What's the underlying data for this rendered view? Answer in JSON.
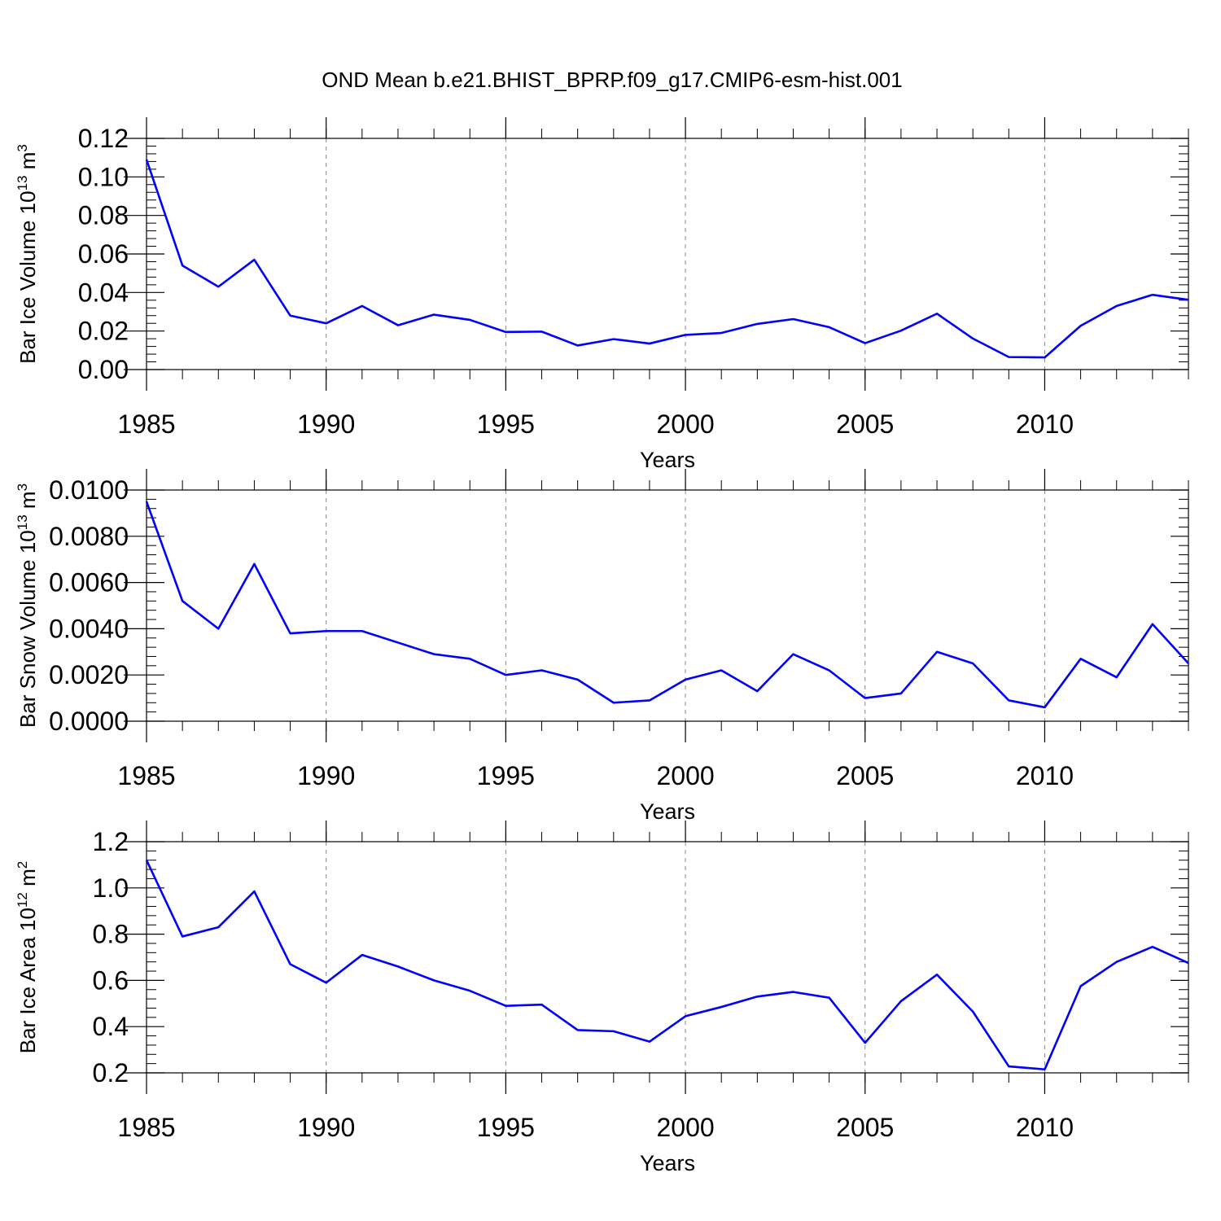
{
  "title": "OND Mean b.e21.BHIST_BPRP.f09_g17.CMIP6-esm-hist.001",
  "line_color": "#0000ff",
  "chart_data": [
    {
      "type": "line",
      "ylabel": "Bar Ice Volume 10",
      "ylabel_exp": "13",
      "ylabel_unit": " m",
      "ylabel_unit_exp": "3",
      "xlabel": "Years",
      "xlim": [
        1985,
        2014
      ],
      "ylim": [
        0,
        0.12
      ],
      "yticks": [
        "0.00",
        "0.02",
        "0.04",
        "0.06",
        "0.08",
        "0.10",
        "0.12"
      ],
      "ytick_values": [
        0,
        0.02,
        0.04,
        0.06,
        0.08,
        0.1,
        0.12
      ],
      "xticks": [
        "1985",
        "1990",
        "1995",
        "2000",
        "2005",
        "2010"
      ],
      "xtick_values": [
        1985,
        1990,
        1995,
        2000,
        2005,
        2010
      ],
      "x": [
        1985,
        1986,
        1987,
        1988,
        1989,
        1990,
        1991,
        1992,
        1993,
        1994,
        1995,
        1996,
        1997,
        1998,
        1999,
        2000,
        2001,
        2002,
        2003,
        2004,
        2005,
        2006,
        2007,
        2008,
        2009,
        2010,
        2011,
        2012,
        2013,
        2014
      ],
      "values": [
        0.109,
        0.054,
        0.043,
        0.057,
        0.028,
        0.024,
        0.033,
        0.023,
        0.0285,
        0.0258,
        0.0195,
        0.0197,
        0.0125,
        0.0158,
        0.0135,
        0.018,
        0.019,
        0.0237,
        0.0262,
        0.022,
        0.0137,
        0.0202,
        0.029,
        0.0161,
        0.0065,
        0.0063,
        0.0227,
        0.033,
        0.0388,
        0.0362
      ]
    },
    {
      "type": "line",
      "ylabel": "Bar Snow Volume 10",
      "ylabel_exp": "13",
      "ylabel_unit": " m",
      "ylabel_unit_exp": "3",
      "xlabel": "Years",
      "xlim": [
        1985,
        2014
      ],
      "ylim": [
        0,
        0.01
      ],
      "yticks": [
        "0.0000",
        "0.0020",
        "0.0040",
        "0.0060",
        "0.0080",
        "0.0100"
      ],
      "ytick_values": [
        0,
        0.002,
        0.004,
        0.006,
        0.008,
        0.01
      ],
      "xticks": [
        "1985",
        "1990",
        "1995",
        "2000",
        "2005",
        "2010"
      ],
      "xtick_values": [
        1985,
        1990,
        1995,
        2000,
        2005,
        2010
      ],
      "x": [
        1985,
        1986,
        1987,
        1988,
        1989,
        1990,
        1991,
        1992,
        1993,
        1994,
        1995,
        1996,
        1997,
        1998,
        1999,
        2000,
        2001,
        2002,
        2003,
        2004,
        2005,
        2006,
        2007,
        2008,
        2009,
        2010,
        2011,
        2012,
        2013,
        2014
      ],
      "values": [
        0.0095,
        0.0052,
        0.004,
        0.0068,
        0.0038,
        0.0039,
        0.0039,
        0.0034,
        0.0029,
        0.0027,
        0.002,
        0.0022,
        0.0018,
        0.0008,
        0.0009,
        0.0018,
        0.0022,
        0.0013,
        0.0029,
        0.0022,
        0.001,
        0.0012,
        0.003,
        0.0025,
        0.0009,
        0.0006,
        0.0027,
        0.0019,
        0.0042,
        0.0025
      ]
    },
    {
      "type": "line",
      "ylabel": "Bar Ice Area 10",
      "ylabel_exp": "12",
      "ylabel_unit": " m",
      "ylabel_unit_exp": "2",
      "xlabel": "Years",
      "xlim": [
        1985,
        2014
      ],
      "ylim": [
        0.2,
        1.2
      ],
      "yticks": [
        "0.2",
        "0.4",
        "0.6",
        "0.8",
        "1.0",
        "1.2"
      ],
      "ytick_values": [
        0.2,
        0.4,
        0.6,
        0.8,
        1.0,
        1.2
      ],
      "xticks": [
        "1985",
        "1990",
        "1995",
        "2000",
        "2005",
        "2010"
      ],
      "xtick_values": [
        1985,
        1990,
        1995,
        2000,
        2005,
        2010
      ],
      "x": [
        1985,
        1986,
        1987,
        1988,
        1989,
        1990,
        1991,
        1992,
        1993,
        1994,
        1995,
        1996,
        1997,
        1998,
        1999,
        2000,
        2001,
        2002,
        2003,
        2004,
        2005,
        2006,
        2007,
        2008,
        2009,
        2010,
        2011,
        2012,
        2013,
        2014
      ],
      "values": [
        1.12,
        0.79,
        0.83,
        0.985,
        0.67,
        0.59,
        0.71,
        0.66,
        0.6,
        0.555,
        0.49,
        0.495,
        0.385,
        0.38,
        0.335,
        0.445,
        0.485,
        0.53,
        0.55,
        0.525,
        0.33,
        0.51,
        0.625,
        0.465,
        0.228,
        0.215,
        0.575,
        0.68,
        0.745,
        0.675
      ]
    }
  ]
}
